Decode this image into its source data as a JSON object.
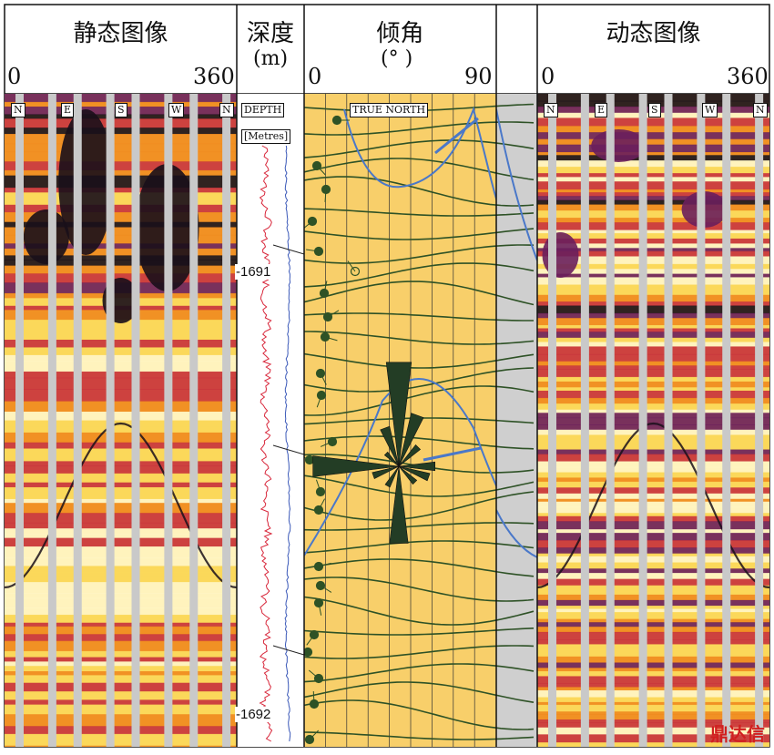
{
  "headers": {
    "static_title": "静态图像",
    "static_min": "0",
    "static_max": "360",
    "depth_title": "深度",
    "depth_unit": "(m)",
    "dip_title": "倾角",
    "dip_unit": "(°  )",
    "dip_min": "0",
    "dip_max": "90",
    "dynamic_title": "动态图像",
    "dynamic_min": "0",
    "dynamic_max": "360"
  },
  "compass": [
    "N",
    "E",
    "S",
    "W",
    "N"
  ],
  "depth_track": {
    "label": "DEPTH",
    "unit_label": "[Metres]",
    "marks": [
      "-1691",
      "-1692"
    ]
  },
  "dip_track": {
    "north_label": "TRUE NORTH"
  },
  "watermark": "鼎达信",
  "colors": {
    "image_dark": "#1a0f1a",
    "image_purple": "#6a1f5c",
    "image_red": "#c8323c",
    "image_orange": "#f08a1e",
    "image_yellow": "#fbd85a",
    "image_light": "#fff6c8",
    "pad_gap": "#c9c9c9",
    "dip_bg": "#f8cf6a",
    "dip_lines": "#2e5226",
    "dip_curve": "#4a78c9",
    "depth_curve_red": "#d8263a",
    "depth_curve_blue": "#3a58b8"
  }
}
